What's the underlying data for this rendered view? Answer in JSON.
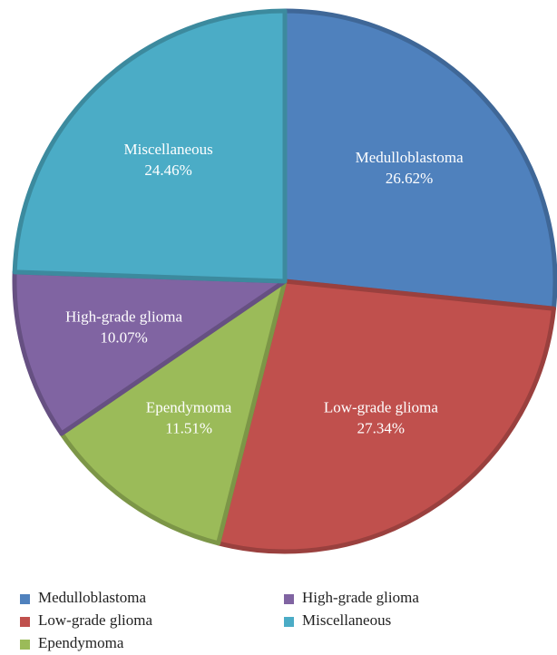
{
  "chart_data": {
    "type": "pie",
    "categories": [
      "Medulloblastoma",
      "Low-grade glioma",
      "Ependymoma",
      "High-grade glioma",
      "Miscellaneous"
    ],
    "values": [
      26.62,
      27.34,
      11.51,
      10.07,
      24.46
    ],
    "value_labels": [
      "26.62%",
      "27.34%",
      "11.51%",
      "10.07%",
      "24.46%"
    ],
    "colors": [
      "#4f81bd",
      "#c0504d",
      "#9bbb59",
      "#8064a2",
      "#4bacc6"
    ],
    "legend": "bottom"
  }
}
